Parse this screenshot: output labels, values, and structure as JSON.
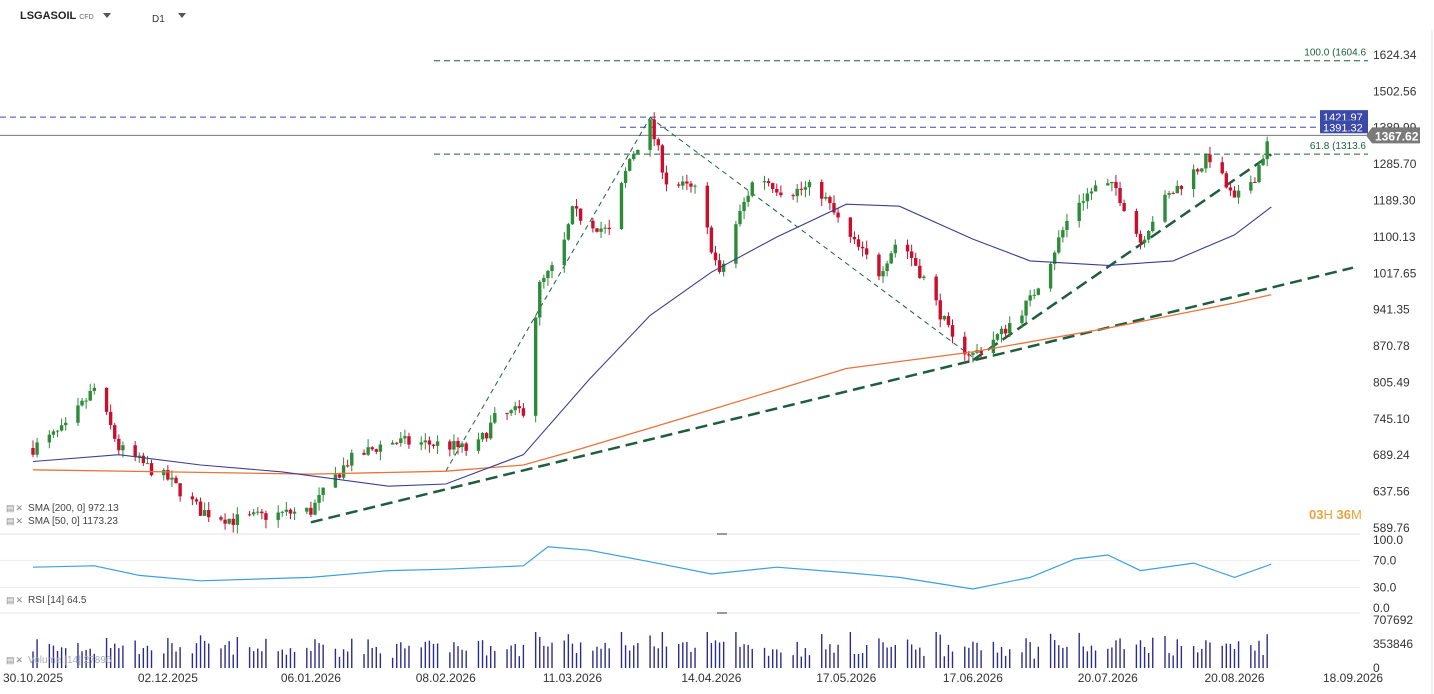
{
  "header": {
    "symbol": "LSGASOIL",
    "instrument_type": "CFD",
    "timeframe": "D1"
  },
  "indicators": {
    "sma200": {
      "label": "SMA [200, 0]",
      "value": "972.13",
      "color": "#e8743b"
    },
    "sma50": {
      "label": "SMA [50, 0]",
      "value": "1173.23",
      "color": "#3a3f8f"
    },
    "rsi": {
      "label": "RSI [14]",
      "value": "64.5",
      "color": "#3aa0e0"
    },
    "volume": {
      "label": "Volume [14]",
      "value": "27896"
    }
  },
  "countdown": {
    "hours": "03",
    "h_unit": "H",
    "minutes": "36",
    "m_unit": "M"
  },
  "price_axis": {
    "ticks": [
      "1624.34",
      "1502.56",
      "1389.99",
      "1285.70",
      "1189.30",
      "1100.13",
      "1017.65",
      "941.35",
      "870.78",
      "805.49",
      "745.10",
      "689.24",
      "637.56",
      "589.76"
    ],
    "current_price": "1367.62",
    "price_label_1": "1421.97",
    "price_label_2": "1391.32",
    "fib_100": "100.0 (1604.6",
    "fib_618": "61.8 (1313.6"
  },
  "rsi_axis": {
    "ticks": [
      "100.0",
      "70.0",
      "30.0",
      "0.0"
    ]
  },
  "volume_axis": {
    "ticks": [
      "707692",
      "353846",
      "0"
    ]
  },
  "date_axis": {
    "ticks": [
      "30.10.2025",
      "02.12.2025",
      "06.01.2026",
      "08.02.2026",
      "11.03.2026",
      "14.04.2026",
      "17.05.2026",
      "17.06.2026",
      "20.07.2026",
      "20.08.2026",
      "18.09.2026"
    ]
  },
  "chart_data": {
    "type": "candlestick",
    "title": "LSGASOIL CFD D1",
    "x_range": [
      "30.10.2025",
      "18.09.2026"
    ],
    "y_range": [
      589.76,
      1624.34
    ],
    "y_scale": "log",
    "price_path": [
      [
        "30.10.2025",
        700
      ],
      [
        "07.11.2025",
        730
      ],
      [
        "14.11.2025",
        795
      ],
      [
        "20.11.2025",
        700
      ],
      [
        "27.11.2025",
        672
      ],
      [
        "02.12.2025",
        655
      ],
      [
        "10.12.2025",
        612
      ],
      [
        "18.12.2025",
        600
      ],
      [
        "30.12.2025",
        608
      ],
      [
        "06.01.2026",
        612
      ],
      [
        "15.01.2026",
        680
      ],
      [
        "25.01.2026",
        710
      ],
      [
        "08.02.2026",
        705
      ],
      [
        "15.02.2026",
        695
      ],
      [
        "20.02.2026",
        745
      ],
      [
        "27.02.2026",
        760
      ],
      [
        "03.03.2026",
        990
      ],
      [
        "08.03.2026",
        1050
      ],
      [
        "11.03.2026",
        1160
      ],
      [
        "20.03.2026",
        1110
      ],
      [
        "25.03.2026",
        1300
      ],
      [
        "30.03.2026",
        1400
      ],
      [
        "03.04.2026",
        1240
      ],
      [
        "10.04.2026",
        1215
      ],
      [
        "16.04.2026",
        1010
      ],
      [
        "20.04.2026",
        1130
      ],
      [
        "25.04.2026",
        1260
      ],
      [
        "02.05.2026",
        1210
      ],
      [
        "10.05.2026",
        1225
      ],
      [
        "17.05.2026",
        1105
      ],
      [
        "25.05.2026",
        1020
      ],
      [
        "30.05.2026",
        1100
      ],
      [
        "06.06.2026",
        990
      ],
      [
        "12.06.2026",
        880
      ],
      [
        "17.06.2026",
        855
      ],
      [
        "24.06.2026",
        895
      ],
      [
        "01.07.2026",
        960
      ],
      [
        "06.07.2026",
        1050
      ],
      [
        "12.07.2026",
        1180
      ],
      [
        "18.07.2026",
        1230
      ],
      [
        "22.07.2026",
        1220
      ],
      [
        "28.07.2026",
        1090
      ],
      [
        "02.08.2026",
        1180
      ],
      [
        "09.08.2026",
        1255
      ],
      [
        "14.08.2026",
        1305
      ],
      [
        "20.08.2026",
        1185
      ],
      [
        "25.08.2026",
        1255
      ],
      [
        "29.08.2026",
        1368
      ]
    ],
    "sma50_path": [
      [
        "30.10.2025",
        680
      ],
      [
        "20.11.2025",
        690
      ],
      [
        "10.12.2025",
        675
      ],
      [
        "30.12.2025",
        665
      ],
      [
        "25.01.2026",
        645
      ],
      [
        "08.02.2026",
        648
      ],
      [
        "27.02.2026",
        690
      ],
      [
        "15.03.2026",
        810
      ],
      [
        "30.03.2026",
        930
      ],
      [
        "14.04.2026",
        1020
      ],
      [
        "30.04.2026",
        1100
      ],
      [
        "17.05.2026",
        1180
      ],
      [
        "30.05.2026",
        1175
      ],
      [
        "17.06.2026",
        1095
      ],
      [
        "01.07.2026",
        1045
      ],
      [
        "20.07.2026",
        1035
      ],
      [
        "05.08.2026",
        1045
      ],
      [
        "20.08.2026",
        1105
      ],
      [
        "29.08.2026",
        1173
      ]
    ],
    "sma200_path": [
      [
        "30.10.2025",
        668
      ],
      [
        "02.12.2025",
        665
      ],
      [
        "06.01.2026",
        662
      ],
      [
        "08.02.2026",
        666
      ],
      [
        "27.02.2026",
        675
      ],
      [
        "11.03.2026",
        695
      ],
      [
        "14.04.2026",
        760
      ],
      [
        "17.05.2026",
        830
      ],
      [
        "17.06.2026",
        860
      ],
      [
        "20.07.2026",
        905
      ],
      [
        "20.08.2026",
        955
      ],
      [
        "29.08.2026",
        972
      ]
    ],
    "rsi_path": [
      [
        "30.10.2025",
        60
      ],
      [
        "14.11.2025",
        62
      ],
      [
        "25.11.2025",
        48
      ],
      [
        "10.12.2025",
        40
      ],
      [
        "06.01.2026",
        45
      ],
      [
        "25.01.2026",
        55
      ],
      [
        "08.02.2026",
        57
      ],
      [
        "27.02.2026",
        62
      ],
      [
        "05.03.2026",
        90
      ],
      [
        "15.03.2026",
        85
      ],
      [
        "30.03.2026",
        68
      ],
      [
        "14.04.2026",
        50
      ],
      [
        "30.04.2026",
        60
      ],
      [
        "17.05.2026",
        52
      ],
      [
        "30.05.2026",
        45
      ],
      [
        "17.06.2026",
        28
      ],
      [
        "01.07.2026",
        45
      ],
      [
        "12.07.2026",
        72
      ],
      [
        "20.07.2026",
        78
      ],
      [
        "28.07.2026",
        55
      ],
      [
        "10.08.2026",
        66
      ],
      [
        "20.08.2026",
        45
      ],
      [
        "29.08.2026",
        64.5
      ]
    ],
    "fib_levels": [
      {
        "label": "100.0",
        "price": 1604.6
      },
      {
        "label": "61.8",
        "price": 1313.6
      }
    ],
    "horizontal_levels": [
      1421.97,
      1391.32,
      1367.62
    ],
    "trendlines": [
      {
        "style": "dashed-thick",
        "from": [
          "06.01.2026",
          597
        ],
        "to": [
          "18.09.2026",
          1030
        ]
      },
      {
        "style": "dashed-thick",
        "from": [
          "17.06.2026",
          845
        ],
        "to": [
          "29.08.2026",
          1313
        ]
      },
      {
        "style": "dashed-thin",
        "from": [
          "08.02.2026",
          666
        ],
        "to": [
          "30.03.2026",
          1421
        ]
      },
      {
        "style": "dashed-thin",
        "from": [
          "30.03.2026",
          1421
        ],
        "to": [
          "17.06.2026",
          850
        ]
      }
    ],
    "grid": false,
    "legend": "bottom-left"
  }
}
